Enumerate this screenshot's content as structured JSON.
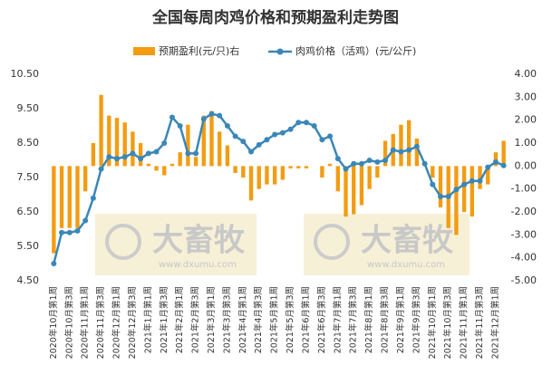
{
  "chart_data": {
    "type": "bar-line",
    "title": "全国每周肉鸡价格和预期盈利走势图",
    "watermarks": [
      "大畜牧",
      "www.dxumu.com"
    ],
    "categories": [
      "2020年10月第1周",
      null,
      "2020年10月第3周",
      null,
      "2020年11月第1周",
      null,
      "2020年11月第3周",
      null,
      "2020年12月第1周",
      null,
      "2020年12月第3周",
      null,
      "2021年1月第1周",
      null,
      "2021年1月第3周",
      null,
      "2021年2月第1周",
      null,
      "2021年2月第3周",
      null,
      "2021年3月第1周",
      null,
      "2021年3月第3周",
      null,
      "2021年4月第1周",
      null,
      "2021年4月第3周",
      null,
      "2021年5月第1周",
      null,
      "2021年5月第3周",
      null,
      "2021年6月第1周",
      null,
      "2021年6月第3周",
      null,
      "2021年7月第1周",
      null,
      "2021年7月第3周",
      null,
      "2021年8月第1周",
      null,
      "2021年8月第3周",
      null,
      "2021年9月第1周",
      null,
      "2021年9月第3周",
      null,
      "2021年10月第1周",
      null,
      "2021年10月第3周",
      null,
      "2021年11月第1周",
      null,
      "2021年11月第3周",
      null,
      "2021年12月第1周",
      null
    ],
    "series": [
      {
        "name": "预期盈利(元/只)右",
        "type": "bar",
        "axis": "y2",
        "color": "#f39c12",
        "values": [
          -3.8,
          -2.7,
          -2.7,
          -2.7,
          -1.1,
          1.0,
          3.1,
          2.2,
          2.1,
          1.9,
          1.5,
          1.0,
          0.1,
          -0.2,
          -0.4,
          0.1,
          0.6,
          1.8,
          0.4,
          2.2,
          2.4,
          1.5,
          0.9,
          -0.3,
          -0.5,
          -1.5,
          -1.0,
          -0.8,
          -0.8,
          -0.6,
          -0.1,
          -0.1,
          -0.1,
          0.0,
          -0.5,
          0.1,
          -1.1,
          -2.2,
          -2.1,
          -1.7,
          -1.0,
          -0.5,
          1.1,
          1.4,
          1.8,
          2.0,
          1.2,
          0.2,
          -0.5,
          -1.8,
          -2.7,
          -3.0,
          -2.0,
          -2.2,
          -1.0,
          -0.8,
          0.6,
          1.1
        ]
      },
      {
        "name": "肉鸡价格（活鸡）(元/公斤)",
        "type": "line",
        "color": "#3a87b8",
        "values": [
          5.0,
          5.9,
          5.9,
          5.95,
          6.25,
          6.9,
          7.75,
          8.1,
          8.05,
          8.1,
          8.2,
          8.05,
          8.2,
          8.25,
          8.5,
          9.25,
          9.0,
          8.2,
          8.2,
          9.2,
          9.35,
          9.3,
          9.0,
          8.7,
          8.55,
          8.25,
          8.45,
          8.6,
          8.75,
          8.8,
          8.9,
          9.1,
          9.1,
          9.0,
          8.6,
          8.7,
          8.05,
          7.75,
          7.9,
          7.9,
          8.0,
          7.95,
          8.0,
          8.3,
          8.25,
          8.3,
          8.4,
          7.9,
          7.3,
          6.95,
          6.95,
          7.15,
          7.3,
          7.4,
          7.4,
          7.8,
          7.95,
          7.85
        ]
      }
    ],
    "ylim": [
      4.5,
      10.5
    ],
    "yticks": [
      {
        "value": 4.5,
        "label": "4.50"
      },
      {
        "value": 5.5,
        "label": "5.50"
      },
      {
        "value": 6.5,
        "label": "6.50"
      },
      {
        "value": 7.5,
        "label": "7.50"
      },
      {
        "value": 8.5,
        "label": "8.50"
      },
      {
        "value": 9.5,
        "label": "9.50"
      },
      {
        "value": 10.5,
        "label": "10.50"
      }
    ],
    "y2lim": [
      -5,
      4
    ],
    "y2ticks": [
      {
        "value": -5,
        "label": "-5.00"
      },
      {
        "value": -4,
        "label": "-4.00"
      },
      {
        "value": -3,
        "label": "-3.00"
      },
      {
        "value": -2,
        "label": "-2.00"
      },
      {
        "value": -1,
        "label": "-1.00"
      },
      {
        "value": 0,
        "label": "0.00"
      },
      {
        "value": 1,
        "label": "1.00"
      },
      {
        "value": 2,
        "label": "2.00"
      },
      {
        "value": 3,
        "label": "3.00"
      },
      {
        "value": 4,
        "label": "4.00"
      }
    ]
  }
}
